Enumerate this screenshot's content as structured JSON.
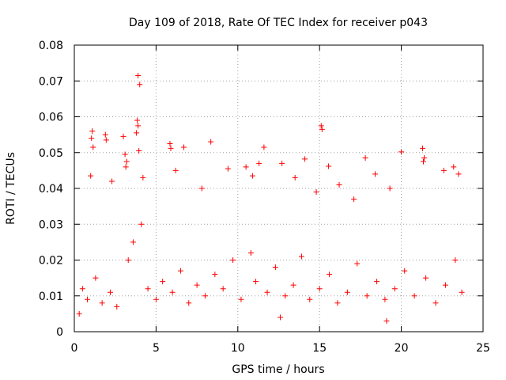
{
  "chart_data": {
    "type": "scatter",
    "title": "Day 109 of 2018, Rate Of TEC Index for receiver p043",
    "xlabel": "GPS time / hours",
    "ylabel": "ROTI / TECUs",
    "xlim": [
      0,
      25
    ],
    "ylim": [
      0,
      0.08
    ],
    "xticks": [
      0,
      5,
      10,
      15,
      20,
      25
    ],
    "yticks": [
      0,
      0.01,
      0.02,
      0.03,
      0.04,
      0.05,
      0.06,
      0.07,
      0.08
    ],
    "xtick_labels": [
      "0",
      "5",
      "10",
      "15",
      "20",
      "25"
    ],
    "ytick_labels": [
      "0",
      "0.01",
      "0.02",
      "0.03",
      "0.04",
      "0.05",
      "0.06",
      "0.07",
      "0.08"
    ],
    "grid": true,
    "marker": "+",
    "color": "#ff0000",
    "series": [
      {
        "name": "ROTI",
        "points": [
          [
            3.9,
            0.0715
          ],
          [
            4.0,
            0.069
          ],
          [
            3.85,
            0.059
          ],
          [
            3.9,
            0.0575
          ],
          [
            3.8,
            0.0555
          ],
          [
            3.95,
            0.0505
          ],
          [
            15.1,
            0.0575
          ],
          [
            15.15,
            0.0565
          ],
          [
            1.1,
            0.056
          ],
          [
            1.05,
            0.054
          ],
          [
            1.15,
            0.0515
          ],
          [
            1.0,
            0.0435
          ],
          [
            1.9,
            0.055
          ],
          [
            1.95,
            0.0535
          ],
          [
            3.0,
            0.0545
          ],
          [
            3.1,
            0.0495
          ],
          [
            3.2,
            0.0475
          ],
          [
            3.15,
            0.046
          ],
          [
            5.85,
            0.0525
          ],
          [
            5.9,
            0.0512
          ],
          [
            6.7,
            0.0515
          ],
          [
            8.35,
            0.053
          ],
          [
            11.6,
            0.0515
          ],
          [
            17.8,
            0.0485
          ],
          [
            14.1,
            0.0482
          ],
          [
            15.55,
            0.0462
          ],
          [
            20.0,
            0.0502
          ],
          [
            21.3,
            0.0512
          ],
          [
            21.4,
            0.0485
          ],
          [
            21.35,
            0.0475
          ],
          [
            10.5,
            0.046
          ],
          [
            9.4,
            0.0455
          ],
          [
            12.7,
            0.047
          ],
          [
            13.5,
            0.043
          ],
          [
            16.2,
            0.041
          ],
          [
            18.4,
            0.044
          ],
          [
            19.3,
            0.04
          ],
          [
            22.6,
            0.045
          ],
          [
            23.2,
            0.046
          ],
          [
            23.5,
            0.044
          ],
          [
            6.2,
            0.045
          ],
          [
            7.8,
            0.04
          ],
          [
            2.3,
            0.042
          ],
          [
            4.2,
            0.043
          ],
          [
            10.9,
            0.0435
          ],
          [
            11.3,
            0.047
          ],
          [
            14.8,
            0.039
          ],
          [
            17.1,
            0.037
          ],
          [
            0.5,
            0.012
          ],
          [
            0.8,
            0.009
          ],
          [
            1.3,
            0.015
          ],
          [
            1.7,
            0.008
          ],
          [
            2.2,
            0.011
          ],
          [
            2.6,
            0.007
          ],
          [
            3.3,
            0.02
          ],
          [
            3.6,
            0.025
          ],
          [
            4.1,
            0.03
          ],
          [
            4.5,
            0.012
          ],
          [
            5.0,
            0.009
          ],
          [
            5.4,
            0.014
          ],
          [
            6.0,
            0.011
          ],
          [
            6.5,
            0.017
          ],
          [
            7.0,
            0.008
          ],
          [
            7.5,
            0.013
          ],
          [
            8.0,
            0.01
          ],
          [
            8.6,
            0.016
          ],
          [
            9.1,
            0.012
          ],
          [
            9.7,
            0.02
          ],
          [
            10.2,
            0.009
          ],
          [
            10.8,
            0.022
          ],
          [
            11.1,
            0.014
          ],
          [
            11.8,
            0.011
          ],
          [
            12.3,
            0.018
          ],
          [
            12.9,
            0.01
          ],
          [
            13.4,
            0.013
          ],
          [
            13.9,
            0.021
          ],
          [
            14.4,
            0.009
          ],
          [
            15.0,
            0.012
          ],
          [
            15.6,
            0.016
          ],
          [
            16.1,
            0.008
          ],
          [
            16.7,
            0.011
          ],
          [
            17.3,
            0.019
          ],
          [
            17.9,
            0.01
          ],
          [
            18.5,
            0.014
          ],
          [
            19.0,
            0.009
          ],
          [
            19.6,
            0.012
          ],
          [
            20.2,
            0.017
          ],
          [
            20.8,
            0.01
          ],
          [
            21.5,
            0.015
          ],
          [
            22.1,
            0.008
          ],
          [
            22.7,
            0.013
          ],
          [
            23.3,
            0.02
          ],
          [
            23.7,
            0.011
          ],
          [
            0.3,
            0.005
          ],
          [
            19.1,
            0.003
          ],
          [
            12.6,
            0.004
          ]
        ]
      }
    ]
  }
}
